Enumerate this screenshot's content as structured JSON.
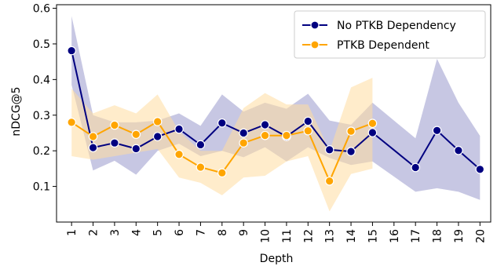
{
  "chart_data": {
    "type": "line",
    "title": "",
    "xlabel": "Depth",
    "ylabel": "nDCG@5",
    "x": [
      1,
      2,
      3,
      4,
      5,
      6,
      7,
      8,
      9,
      10,
      11,
      12,
      13,
      14,
      15,
      16,
      17,
      18,
      19,
      20
    ],
    "xlim": [
      0.3,
      20.5
    ],
    "ylim": [
      0.0,
      0.61
    ],
    "yticks": [
      0.1,
      0.2,
      0.3,
      0.4,
      0.5,
      0.6
    ],
    "ytick_labels": [
      "0.1",
      "0.2",
      "0.3",
      "0.4",
      "0.5",
      "0.6"
    ],
    "xtick_labels": [
      "1",
      "2",
      "3",
      "4",
      "5",
      "6",
      "7",
      "8",
      "9",
      "10",
      "11",
      "12",
      "13",
      "14",
      "15",
      "16",
      "17",
      "18",
      "19",
      "20"
    ],
    "grid": false,
    "legend_position": "top-right",
    "series": [
      {
        "name": "No PTKB Dependency",
        "color": "#000080",
        "band_color": "#9999cc",
        "x": [
          1,
          2,
          3,
          4,
          5,
          6,
          7,
          8,
          9,
          10,
          11,
          12,
          13,
          14,
          15,
          17,
          18,
          19,
          20
        ],
        "values": [
          0.481,
          0.209,
          0.222,
          0.206,
          0.24,
          0.261,
          0.217,
          0.278,
          0.25,
          0.273,
          0.24,
          0.283,
          0.203,
          0.198,
          0.251,
          0.153,
          0.257,
          0.201,
          0.148
        ],
        "lower": [
          0.385,
          0.145,
          0.172,
          0.133,
          0.2,
          0.22,
          0.185,
          0.2,
          0.182,
          0.21,
          0.17,
          0.21,
          0.18,
          0.16,
          0.17,
          0.085,
          0.095,
          0.085,
          0.062
        ],
        "upper": [
          0.578,
          0.3,
          0.28,
          0.28,
          0.285,
          0.305,
          0.27,
          0.358,
          0.31,
          0.335,
          0.318,
          0.36,
          0.285,
          0.273,
          0.335,
          0.235,
          0.458,
          0.335,
          0.242
        ]
      },
      {
        "name": "PTKB Dependent",
        "color": "#ffa500",
        "band_color": "#ffdca0",
        "x": [
          1,
          2,
          3,
          4,
          5,
          6,
          7,
          8,
          9,
          10,
          11,
          12,
          13,
          14,
          15
        ],
        "values": [
          0.28,
          0.24,
          0.272,
          0.246,
          0.282,
          0.19,
          0.154,
          0.138,
          0.222,
          0.243,
          0.243,
          0.256,
          0.115,
          0.255,
          0.277
        ],
        "lower": [
          0.185,
          0.175,
          0.185,
          0.195,
          0.205,
          0.125,
          0.11,
          0.075,
          0.125,
          0.13,
          0.17,
          0.185,
          0.03,
          0.135,
          0.15
        ],
        "upper": [
          0.375,
          0.305,
          0.328,
          0.305,
          0.358,
          0.255,
          0.2,
          0.2,
          0.32,
          0.362,
          0.33,
          0.33,
          0.2,
          0.378,
          0.405
        ]
      }
    ]
  }
}
